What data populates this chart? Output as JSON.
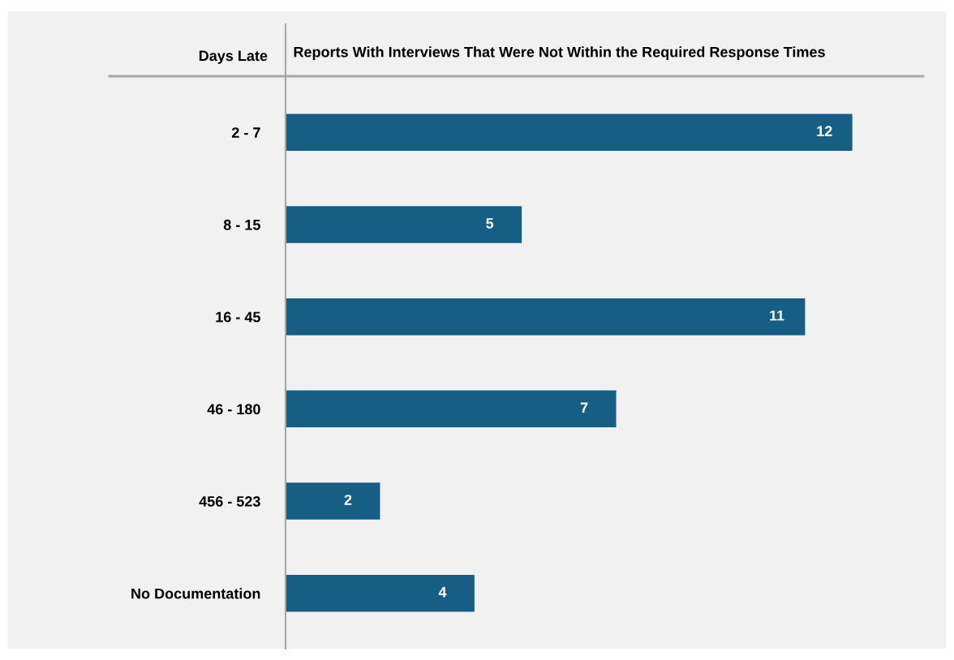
{
  "chart_data": {
    "type": "bar",
    "orientation": "horizontal",
    "xlabel": "Reports With Interviews That Were Not Within the Required Response Times",
    "ylabel": "Days Late",
    "categories": [
      "2 - 7",
      "8 - 15",
      "16 - 45",
      "46 - 180",
      "456 - 523",
      "No Documentation"
    ],
    "values": [
      12,
      5,
      11,
      7,
      2,
      4
    ],
    "color": "#165e83",
    "data_labels": true,
    "xlim": [
      0,
      13.5
    ],
    "grid": false,
    "legend": false,
    "tick_labels": "y"
  }
}
